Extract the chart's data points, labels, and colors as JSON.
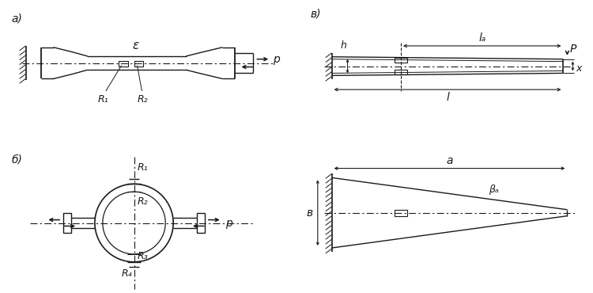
{
  "bg_color": "#ffffff",
  "line_color": "#1a1a1a",
  "label_a": "a)",
  "label_b": "б)",
  "label_v": "в)",
  "epsilon": "ε",
  "R1": "R₁",
  "R2": "R₂",
  "R3": "R₃",
  "R4": "R₄",
  "p_label": "p",
  "la_label": "lₐ",
  "l_label": "l",
  "h_label": "h",
  "x_label": "x",
  "P_label": "P",
  "a_label": "a",
  "b_label": "в",
  "ba_label": "βₐ"
}
